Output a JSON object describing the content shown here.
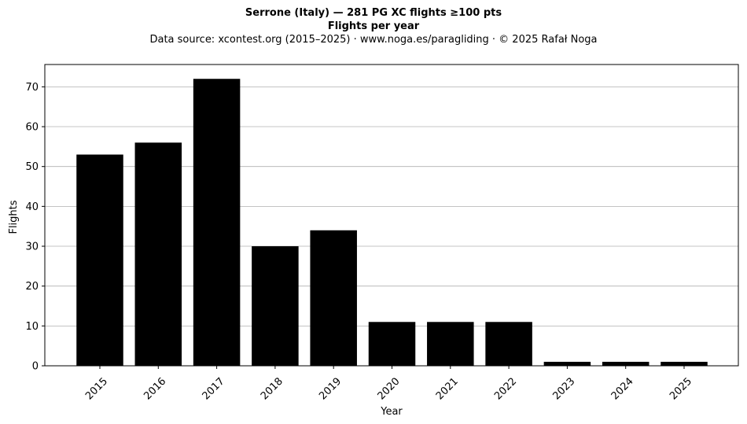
{
  "chart_data": {
    "type": "bar",
    "title": "Serrone (Italy)  —  281 PG XC flights ≥100 pts",
    "subtitle": "Flights per year",
    "source": "Data source: xcontest.org (2015–2025)  ·  www.noga.es/paragliding  ·  © 2025 Rafał Noga",
    "xlabel": "Year",
    "ylabel": "Flights",
    "categories": [
      "2015",
      "2016",
      "2017",
      "2018",
      "2019",
      "2020",
      "2021",
      "2022",
      "2023",
      "2024",
      "2025"
    ],
    "values": [
      53,
      56,
      72,
      30,
      34,
      11,
      11,
      11,
      1,
      1,
      1
    ],
    "ylim": [
      0,
      75.6
    ],
    "yticks": [
      0,
      10,
      20,
      30,
      40,
      50,
      60,
      70
    ],
    "grid": "y",
    "bar_color": "#000000",
    "grid_color": "#b0b0b0"
  }
}
